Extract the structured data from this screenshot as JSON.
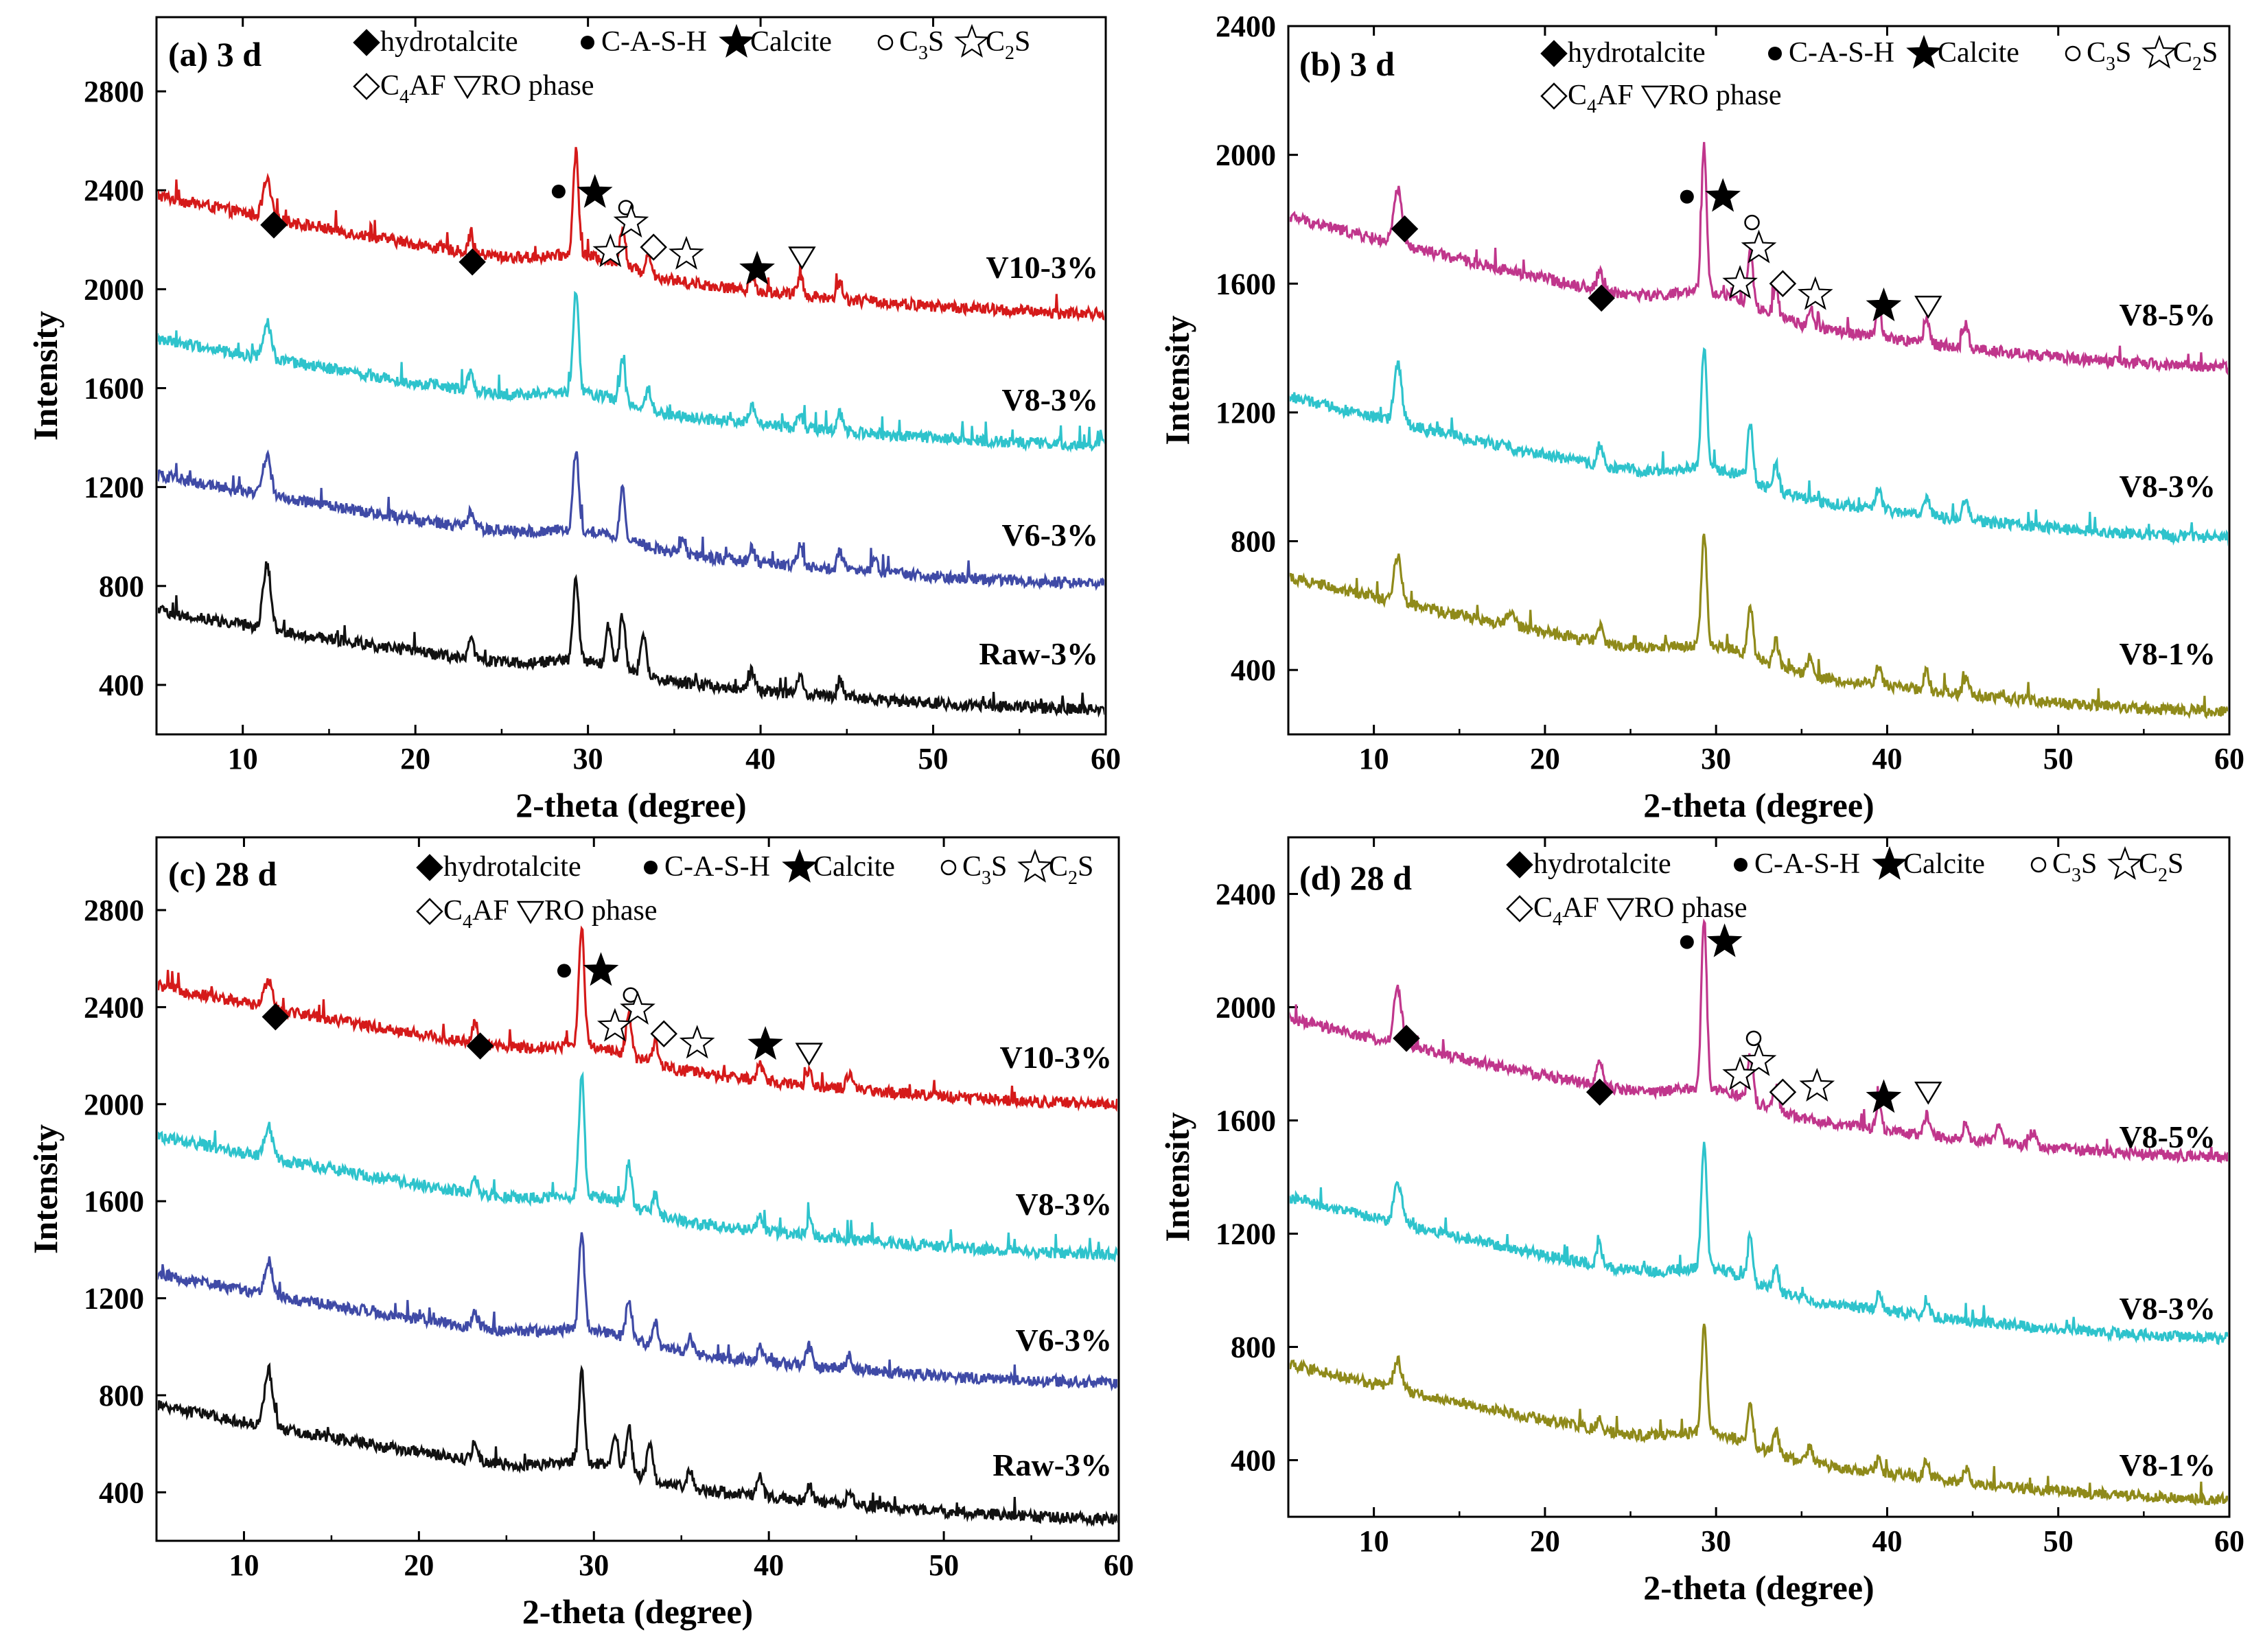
{
  "figure": {
    "legend_entries": [
      {
        "symbol": "diamond-filled",
        "text": "hydrotalcite"
      },
      {
        "symbol": "dot-filled",
        "text": "C-A-S-H"
      },
      {
        "symbol": "star-filled",
        "text": "Calcite"
      },
      {
        "symbol": "circle-open",
        "text": "C",
        "sub": "3",
        "tail": "S"
      },
      {
        "symbol": "star-open",
        "text": "C",
        "sub": "2",
        "tail": "S"
      },
      {
        "symbol": "diamond-open",
        "text": "C",
        "sub": "4",
        "tail": "AF"
      },
      {
        "symbol": "triangle-down-open",
        "text": "RO phase"
      }
    ],
    "colors": {
      "red": "#d51a1a",
      "cyan": "#2ec3cc",
      "blue": "#3f4aa6",
      "black": "#111111",
      "magenta": "#c0368c",
      "olive": "#8f8a1a"
    }
  },
  "chart_data": [
    {
      "type": "line",
      "panel_label": "(a) 3 d",
      "xlabel": "2-theta (degree)",
      "ylabel": "Intensity",
      "xlim": [
        5,
        60
      ],
      "ylim": [
        200,
        3100
      ],
      "xticks": [
        10,
        20,
        30,
        40,
        50,
        60
      ],
      "yticks": [
        400,
        800,
        1200,
        1600,
        2000,
        2400,
        2800
      ],
      "x_tick_labels": [
        "10",
        "20",
        "30",
        "40",
        "50",
        "60"
      ],
      "y_tick_labels": [
        "400",
        "800",
        "1200",
        "1600",
        "2000",
        "2400",
        "2800"
      ],
      "series": [
        {
          "name": "V10-3%",
          "color": "#d51a1a",
          "start": 2380,
          "end": 1900,
          "peaks": [
            [
              11.4,
              150
            ],
            [
              23.2,
              70
            ],
            [
              29.3,
              420
            ],
            [
              32.0,
              160
            ],
            [
              33.5,
              90
            ],
            [
              39.5,
              60
            ],
            [
              42.3,
              80
            ],
            [
              44.6,
              70
            ]
          ]
        },
        {
          "name": "V8-3%",
          "color": "#2ec3cc",
          "start": 1800,
          "end": 1370,
          "peaks": [
            [
              11.4,
              150
            ],
            [
              23.2,
              70
            ],
            [
              29.3,
              420
            ],
            [
              32.0,
              160
            ],
            [
              33.5,
              80
            ],
            [
              39.5,
              70
            ],
            [
              42.3,
              60
            ],
            [
              44.6,
              70
            ]
          ]
        },
        {
          "name": "V6-3%",
          "color": "#3f4aa6",
          "start": 1250,
          "end": 810,
          "peaks": [
            [
              11.4,
              160
            ],
            [
              23.2,
              60
            ],
            [
              29.3,
              320
            ],
            [
              32.0,
              200
            ],
            [
              35.5,
              70
            ],
            [
              39.5,
              60
            ],
            [
              42.3,
              80
            ],
            [
              44.6,
              70
            ],
            [
              46.6,
              60
            ]
          ]
        },
        {
          "name": "Raw-3%",
          "color": "#111111",
          "start": 700,
          "end": 300,
          "peaks": [
            [
              11.4,
              260
            ],
            [
              23.2,
              80
            ],
            [
              29.3,
              340
            ],
            [
              31.2,
              160
            ],
            [
              32.0,
              220
            ],
            [
              33.2,
              170
            ],
            [
              39.5,
              80
            ],
            [
              42.3,
              70
            ],
            [
              44.6,
              70
            ]
          ]
        }
      ],
      "markers": [
        {
          "symbol": "diamond-filled",
          "x": 11.8,
          "y": 2260
        },
        {
          "symbol": "diamond-filled",
          "x": 23.3,
          "y": 2110
        },
        {
          "symbol": "dot-filled",
          "x": 28.3,
          "y": 2395
        },
        {
          "symbol": "star-filled",
          "x": 30.4,
          "y": 2390
        },
        {
          "symbol": "circle-open",
          "x": 32.2,
          "y": 2330
        },
        {
          "symbol": "star-open",
          "x": 32.5,
          "y": 2270
        },
        {
          "symbol": "star-open",
          "x": 31.3,
          "y": 2150
        },
        {
          "symbol": "diamond-open",
          "x": 33.8,
          "y": 2170
        },
        {
          "symbol": "star-open",
          "x": 35.7,
          "y": 2140
        },
        {
          "symbol": "star-filled",
          "x": 39.8,
          "y": 2080
        },
        {
          "symbol": "triangle-down-open",
          "x": 42.4,
          "y": 2130
        }
      ]
    },
    {
      "type": "line",
      "panel_label": "(b) 3 d",
      "xlabel": "2-theta (degree)",
      "ylabel": "Intensity",
      "xlim": [
        5,
        60
      ],
      "ylim": [
        200,
        2400
      ],
      "xticks": [
        10,
        20,
        30,
        40,
        50,
        60
      ],
      "yticks": [
        400,
        800,
        1200,
        1600,
        2000,
        2400
      ],
      "x_tick_labels": [
        "10",
        "20",
        "30",
        "40",
        "50",
        "60"
      ],
      "y_tick_labels": [
        "400",
        "800",
        "1200",
        "1600",
        "2000",
        "2400"
      ],
      "series": [
        {
          "name": "V8-5%",
          "color": "#c0368c",
          "start": 1810,
          "end": 1340,
          "peaks": [
            [
              11.4,
              170
            ],
            [
              23.2,
              60
            ],
            [
              29.3,
              450
            ],
            [
              32.0,
              170
            ],
            [
              33.5,
              80
            ],
            [
              35.5,
              60
            ],
            [
              39.5,
              90
            ],
            [
              42.3,
              80
            ],
            [
              44.6,
              70
            ]
          ]
        },
        {
          "name": "V8-3%",
          "color": "#2ec3cc",
          "start": 1250,
          "end": 810,
          "peaks": [
            [
              11.4,
              180
            ],
            [
              23.2,
              60
            ],
            [
              29.3,
              380
            ],
            [
              32.0,
              170
            ],
            [
              33.5,
              80
            ],
            [
              39.5,
              70
            ],
            [
              42.3,
              60
            ],
            [
              44.6,
              70
            ]
          ]
        },
        {
          "name": "V8-1%",
          "color": "#8f8a1a",
          "start": 690,
          "end": 270,
          "peaks": [
            [
              11.4,
              140
            ],
            [
              18.0,
              40
            ],
            [
              23.2,
              50
            ],
            [
              29.3,
              350
            ],
            [
              32.0,
              160
            ],
            [
              33.5,
              80
            ],
            [
              35.5,
              60
            ],
            [
              39.5,
              60
            ],
            [
              42.3,
              60
            ],
            [
              44.6,
              60
            ]
          ]
        }
      ],
      "markers": [
        {
          "symbol": "diamond-filled",
          "x": 11.8,
          "y": 1770
        },
        {
          "symbol": "diamond-filled",
          "x": 23.3,
          "y": 1555
        },
        {
          "symbol": "dot-filled",
          "x": 28.3,
          "y": 1870
        },
        {
          "symbol": "star-filled",
          "x": 30.4,
          "y": 1870
        },
        {
          "symbol": "circle-open",
          "x": 32.1,
          "y": 1790
        },
        {
          "symbol": "star-open",
          "x": 32.5,
          "y": 1710
        },
        {
          "symbol": "star-open",
          "x": 31.4,
          "y": 1600
        },
        {
          "symbol": "diamond-open",
          "x": 33.9,
          "y": 1600
        },
        {
          "symbol": "star-open",
          "x": 35.8,
          "y": 1565
        },
        {
          "symbol": "star-filled",
          "x": 39.8,
          "y": 1530
        },
        {
          "symbol": "triangle-down-open",
          "x": 42.4,
          "y": 1530
        }
      ]
    },
    {
      "type": "line",
      "panel_label": "(c) 28 d",
      "xlabel": "2-theta (degree)",
      "ylabel": "Intensity",
      "xlim": [
        5,
        60
      ],
      "ylim": [
        200,
        3100
      ],
      "xticks": [
        10,
        20,
        30,
        40,
        50,
        60
      ],
      "yticks": [
        400,
        800,
        1200,
        1600,
        2000,
        2400,
        2800
      ],
      "x_tick_labels": [
        "10",
        "20",
        "30",
        "40",
        "50",
        "60"
      ],
      "y_tick_labels": [
        "400",
        "800",
        "1200",
        "1600",
        "2000",
        "2400",
        "2800"
      ],
      "series": [
        {
          "name": "V10-3%",
          "color": "#d51a1a",
          "start": 2490,
          "end": 2000,
          "peaks": [
            [
              11.4,
              120
            ],
            [
              23.2,
              80
            ],
            [
              29.3,
              500
            ],
            [
              32.0,
              180
            ],
            [
              33.5,
              90
            ],
            [
              39.5,
              70
            ],
            [
              42.3,
              60
            ],
            [
              44.6,
              60
            ]
          ]
        },
        {
          "name": "V8-3%",
          "color": "#2ec3cc",
          "start": 1870,
          "end": 1380,
          "peaks": [
            [
              11.4,
              130
            ],
            [
              23.2,
              70
            ],
            [
              29.3,
              500
            ],
            [
              32.0,
              180
            ],
            [
              33.5,
              80
            ],
            [
              39.5,
              60
            ],
            [
              42.3,
              60
            ]
          ]
        },
        {
          "name": "V6-3%",
          "color": "#3f4aa6",
          "start": 1300,
          "end": 850,
          "peaks": [
            [
              11.4,
              140
            ],
            [
              23.2,
              60
            ],
            [
              29.3,
              400
            ],
            [
              32.0,
              170
            ],
            [
              33.5,
              100
            ],
            [
              35.5,
              70
            ],
            [
              39.5,
              60
            ],
            [
              42.3,
              80
            ],
            [
              44.6,
              60
            ]
          ]
        },
        {
          "name": "Raw-3%",
          "color": "#111111",
          "start": 760,
          "end": 290,
          "peaks": [
            [
              11.4,
              240
            ],
            [
              23.2,
              80
            ],
            [
              29.3,
              380
            ],
            [
              31.2,
              150
            ],
            [
              32.0,
              200
            ],
            [
              33.2,
              150
            ],
            [
              35.5,
              70
            ],
            [
              39.5,
              80
            ],
            [
              42.3,
              70
            ],
            [
              44.6,
              60
            ]
          ]
        }
      ],
      "markers": [
        {
          "symbol": "diamond-filled",
          "x": 11.8,
          "y": 2360
        },
        {
          "symbol": "diamond-filled",
          "x": 23.5,
          "y": 2240
        },
        {
          "symbol": "dot-filled",
          "x": 28.3,
          "y": 2550
        },
        {
          "symbol": "star-filled",
          "x": 30.4,
          "y": 2550
        },
        {
          "symbol": "circle-open",
          "x": 32.1,
          "y": 2450
        },
        {
          "symbol": "star-open",
          "x": 32.5,
          "y": 2390
        },
        {
          "symbol": "star-open",
          "x": 31.2,
          "y": 2320
        },
        {
          "symbol": "diamond-open",
          "x": 34.0,
          "y": 2290
        },
        {
          "symbol": "star-open",
          "x": 35.9,
          "y": 2250
        },
        {
          "symbol": "star-filled",
          "x": 39.8,
          "y": 2245
        },
        {
          "symbol": "triangle-down-open",
          "x": 42.3,
          "y": 2210
        }
      ]
    },
    {
      "type": "line",
      "panel_label": "(d) 28 d",
      "xlabel": "2-theta (degree)",
      "ylabel": "Intensity",
      "xlim": [
        5,
        60
      ],
      "ylim": [
        200,
        2600
      ],
      "xticks": [
        10,
        20,
        30,
        40,
        50,
        60
      ],
      "yticks": [
        400,
        800,
        1200,
        1600,
        2000,
        2400
      ],
      "x_tick_labels": [
        "10",
        "20",
        "30",
        "40",
        "50",
        "60"
      ],
      "y_tick_labels": [
        "400",
        "800",
        "1200",
        "1600",
        "2000",
        "2400"
      ],
      "series": [
        {
          "name": "V8-5%",
          "color": "#c0368c",
          "start": 1960,
          "end": 1470,
          "peaks": [
            [
              11.4,
              200
            ],
            [
              23.2,
              100
            ],
            [
              29.3,
              600
            ],
            [
              32.0,
              160
            ],
            [
              33.5,
              80
            ],
            [
              39.5,
              100
            ],
            [
              42.3,
              70
            ],
            [
              44.6,
              60
            ],
            [
              46.5,
              60
            ],
            [
              48.5,
              50
            ]
          ]
        },
        {
          "name": "V8-3%",
          "color": "#2ec3cc",
          "start": 1330,
          "end": 830,
          "peaks": [
            [
              11.4,
              150
            ],
            [
              23.2,
              70
            ],
            [
              29.3,
              450
            ],
            [
              32.0,
              160
            ],
            [
              33.5,
              80
            ],
            [
              39.5,
              60
            ],
            [
              42.3,
              60
            ]
          ]
        },
        {
          "name": "V8-1%",
          "color": "#8f8a1a",
          "start": 740,
          "end": 260,
          "peaks": [
            [
              11.4,
              100
            ],
            [
              23.2,
              40
            ],
            [
              29.3,
              380
            ],
            [
              32.0,
              140
            ],
            [
              33.5,
              80
            ],
            [
              35.5,
              60
            ],
            [
              39.5,
              50
            ],
            [
              42.3,
              60
            ],
            [
              44.6,
              50
            ]
          ]
        }
      ],
      "markers": [
        {
          "symbol": "diamond-filled",
          "x": 11.9,
          "y": 1890
        },
        {
          "symbol": "diamond-filled",
          "x": 23.2,
          "y": 1700
        },
        {
          "symbol": "dot-filled",
          "x": 28.3,
          "y": 2230
        },
        {
          "symbol": "star-filled",
          "x": 30.5,
          "y": 2230
        },
        {
          "symbol": "circle-open",
          "x": 32.2,
          "y": 1890
        },
        {
          "symbol": "star-open",
          "x": 32.5,
          "y": 1810
        },
        {
          "symbol": "star-open",
          "x": 31.4,
          "y": 1760
        },
        {
          "symbol": "diamond-open",
          "x": 33.9,
          "y": 1700
        },
        {
          "symbol": "star-open",
          "x": 35.9,
          "y": 1720
        },
        {
          "symbol": "star-filled",
          "x": 39.8,
          "y": 1680
        },
        {
          "symbol": "triangle-down-open",
          "x": 42.4,
          "y": 1700
        }
      ]
    }
  ]
}
